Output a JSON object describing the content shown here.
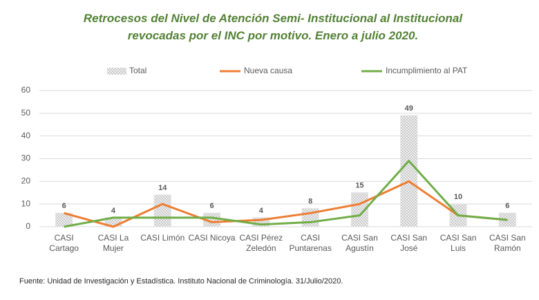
{
  "chart_data": {
    "type": "bar-line",
    "title": "Retrocesos del Nivel de Atención Semi- Institucional al Institucional revocadas por el INC por motivo. Enero a julio 2020.",
    "categories": [
      "CASI Cartago",
      "CASI La Mujer",
      "CASI Limón",
      "CASI Nicoya",
      "CASI Pérez Zeledón",
      "CASI Puntarenas",
      "CASI San Agustín",
      "CASI San José",
      "CASI San Luis",
      "CASI San Ramón"
    ],
    "series": [
      {
        "name": "Total",
        "type": "bar",
        "color": "#d9d9d9",
        "values": [
          6,
          4,
          14,
          6,
          4,
          8,
          15,
          49,
          10,
          6
        ]
      },
      {
        "name": "Nueva causa",
        "type": "line",
        "color": "#ed7d31",
        "values": [
          6,
          0,
          10,
          2,
          3,
          6,
          10,
          20,
          5,
          3
        ]
      },
      {
        "name": "Incumplimiento al PAT",
        "type": "line",
        "color": "#70ad47",
        "values": [
          0,
          4,
          4,
          4,
          1,
          2,
          5,
          29,
          5,
          3
        ]
      }
    ],
    "ylim": [
      0,
      60
    ],
    "yticks": [
      0,
      10,
      20,
      30,
      40,
      50,
      60
    ],
    "grid": true,
    "legend": "top",
    "source": "Fuente: Unidad de Investigación y Estadística. Instituto Nacional de Criminología. 31/Julio/2020."
  }
}
